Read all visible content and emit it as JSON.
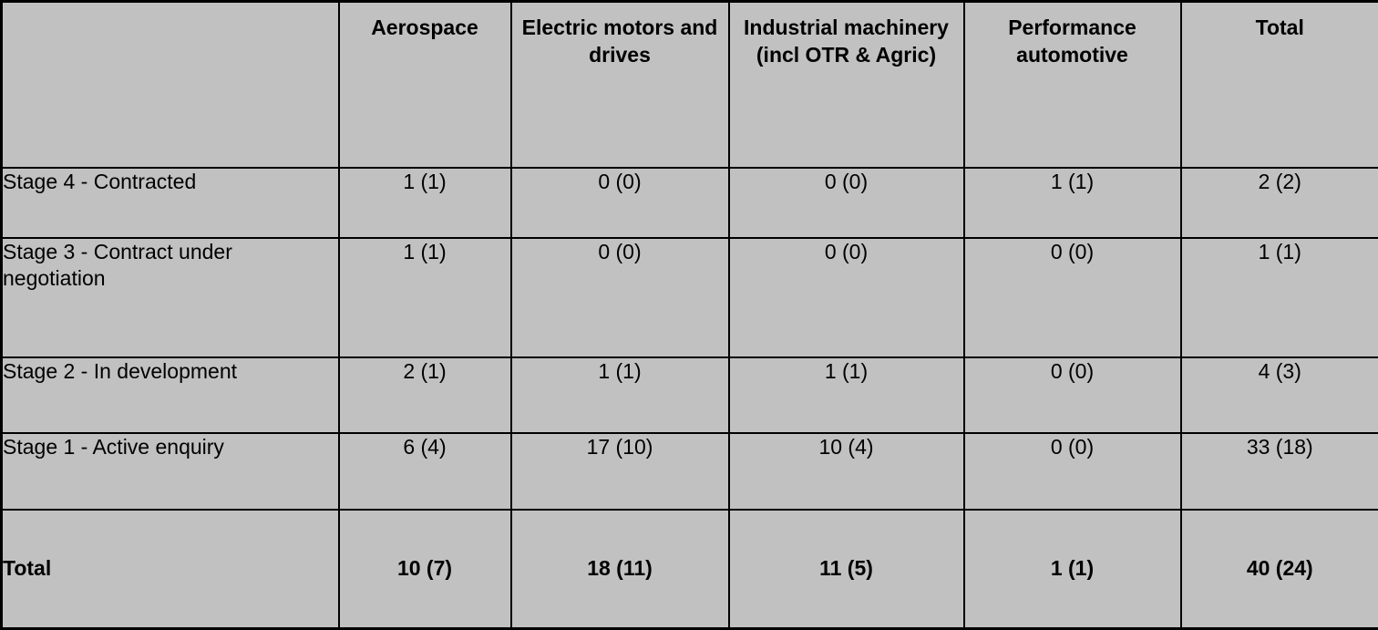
{
  "chart_data": {
    "type": "table",
    "columns": [
      "",
      "Aerospace",
      "Electric motors and drives",
      "Industrial machinery (incl OTR & Agric)",
      "Performance automotive",
      "Total"
    ],
    "rows": [
      {
        "label": "Stage 4 - Contracted",
        "values": [
          "1 (1)",
          "0 (0)",
          "0 (0)",
          "1 (1)",
          "2 (2)"
        ]
      },
      {
        "label": "Stage 3 - Contract under negotiation",
        "values": [
          "1 (1)",
          "0 (0)",
          "0 (0)",
          "0 (0)",
          "1 (1)"
        ]
      },
      {
        "label": "Stage 2 - In development",
        "values": [
          "2 (1)",
          "1 (1)",
          "1 (1)",
          "0 (0)",
          "4 (3)"
        ]
      },
      {
        "label": "Stage 1 - Active enquiry",
        "values": [
          "6 (4)",
          "17 (10)",
          "10 (4)",
          "0 (0)",
          "33 (18)"
        ]
      }
    ],
    "total_row": {
      "label": "Total",
      "values": [
        "10 (7)",
        "18 (11)",
        "11 (5)",
        "1 (1)",
        "40 (24)"
      ]
    },
    "layout": {
      "grid": "on",
      "value_format": "count (count)"
    }
  },
  "colors": {
    "background": "#c1c1c1",
    "border": "#000000",
    "text": "#000000"
  }
}
